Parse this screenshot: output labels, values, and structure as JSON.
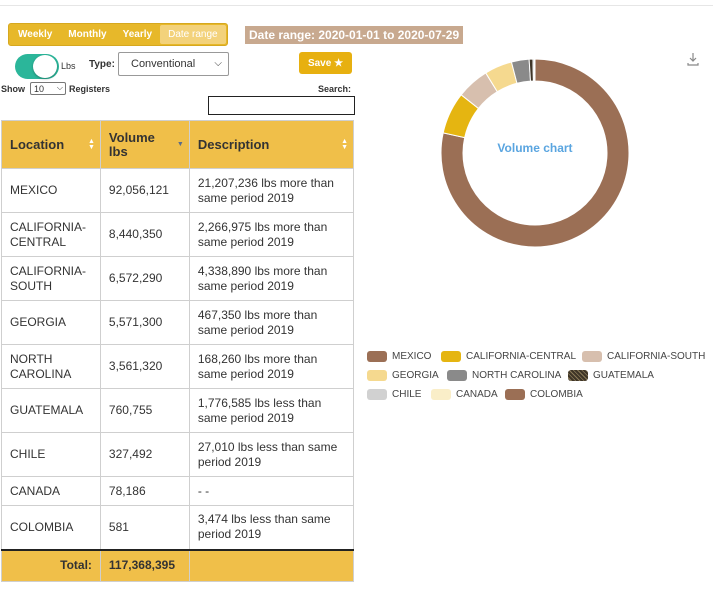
{
  "period_buttons": [
    "Weekly",
    "Monthly",
    "Yearly",
    "Date range"
  ],
  "active_period": "Date range",
  "date_range_label": "Date range: 2020-01-01 to 2020-07-29",
  "toggle_label": "Lbs",
  "type_label": "Type:",
  "type_value": "Conventional",
  "save_label": "Save ★",
  "show_label": "Show",
  "show_value": "10",
  "registers_label": "Registers",
  "search_label": "Search:",
  "search_value": "",
  "table": {
    "columns": [
      "Location",
      "Volume lbs",
      "Description"
    ],
    "rows": [
      {
        "location": "MEXICO",
        "volume": "92,056,121",
        "description": "21,207,236 lbs more than same period 2019"
      },
      {
        "location": "CALIFORNIA-CENTRAL",
        "volume": "8,440,350",
        "description": "2,266,975 lbs more than same period 2019"
      },
      {
        "location": "CALIFORNIA-SOUTH",
        "volume": "6,572,290",
        "description": "4,338,890 lbs more than same period 2019"
      },
      {
        "location": "GEORGIA",
        "volume": "5,571,300",
        "description": "467,350 lbs more than same period 2019"
      },
      {
        "location": "NORTH CAROLINA",
        "volume": "3,561,320",
        "description": "168,260 lbs more than same period 2019"
      },
      {
        "location": "GUATEMALA",
        "volume": "760,755",
        "description": "1,776,585 lbs less than same period 2019"
      },
      {
        "location": "CHILE",
        "volume": "327,492",
        "description": "27,010 lbs less than same period 2019"
      },
      {
        "location": "CANADA",
        "volume": "78,186",
        "description": "- -"
      },
      {
        "location": "COLOMBIA",
        "volume": "581",
        "description": "3,474 lbs less than same period 2019"
      }
    ],
    "total_label": "Total:",
    "total_value": "117,368,395"
  },
  "chart_data": {
    "type": "pie",
    "title": "Volume chart",
    "categories": [
      "MEXICO",
      "CALIFORNIA-CENTRAL",
      "CALIFORNIA-SOUTH",
      "GEORGIA",
      "NORTH CAROLINA",
      "GUATEMALA",
      "CHILE",
      "CANADA",
      "COLOMBIA"
    ],
    "values": [
      92056121,
      8440350,
      6572290,
      5571300,
      3561320,
      760755,
      327492,
      78186,
      581
    ],
    "colors": [
      "#9b6f55",
      "#e5b511",
      "#d7bfae",
      "#f5d98f",
      "#8a8a8a",
      "#3f3527",
      "#d1d1d1",
      "#faeec8",
      "#9b6f55"
    ],
    "legend_position": "bottom"
  },
  "icons": {
    "download": "download-icon",
    "save_star": "star-icon",
    "sort": "sort-icon"
  }
}
